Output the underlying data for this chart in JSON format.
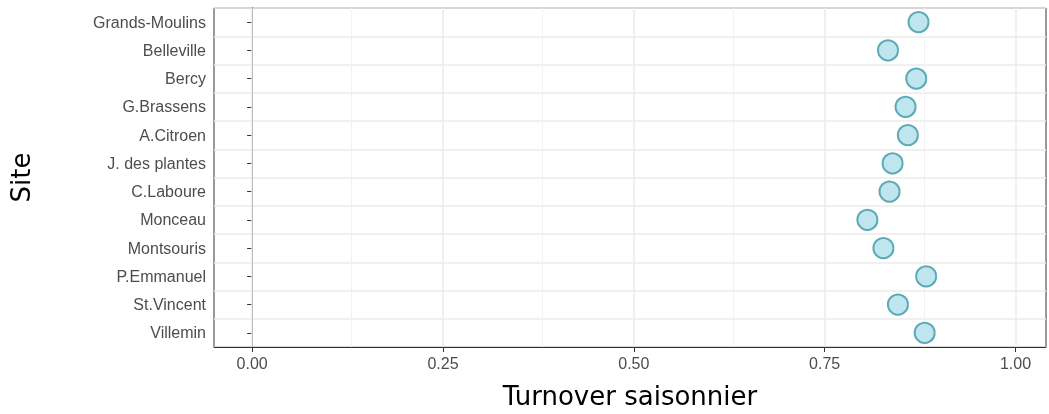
{
  "chart_data": {
    "type": "scatter",
    "orientation": "horizontal",
    "xlabel": "Turnover saisonnier",
    "ylabel": "Site",
    "categories": [
      "Grands-Moulins",
      "Belleville",
      "Bercy",
      "G.Brassens",
      "A.Citroen",
      "J. des plantes",
      "C.Laboure",
      "Monceau",
      "Montsouris",
      "P.Emmanuel",
      "St.Vincent",
      "Villemin"
    ],
    "values": [
      0.873,
      0.833,
      0.87,
      0.856,
      0.859,
      0.839,
      0.835,
      0.806,
      0.827,
      0.883,
      0.846,
      0.881
    ],
    "color": "#bfe6ee",
    "xlim": [
      -0.05,
      1.04
    ],
    "xticks": [
      {
        "value": 0,
        "label": "0.00"
      },
      {
        "value": 0.25,
        "label": "0.25"
      },
      {
        "value": 0.5,
        "label": "0.50"
      },
      {
        "value": 0.75,
        "label": "0.75"
      },
      {
        "value": 1,
        "label": "1.00"
      }
    ],
    "grid": true,
    "marker": "circle"
  }
}
